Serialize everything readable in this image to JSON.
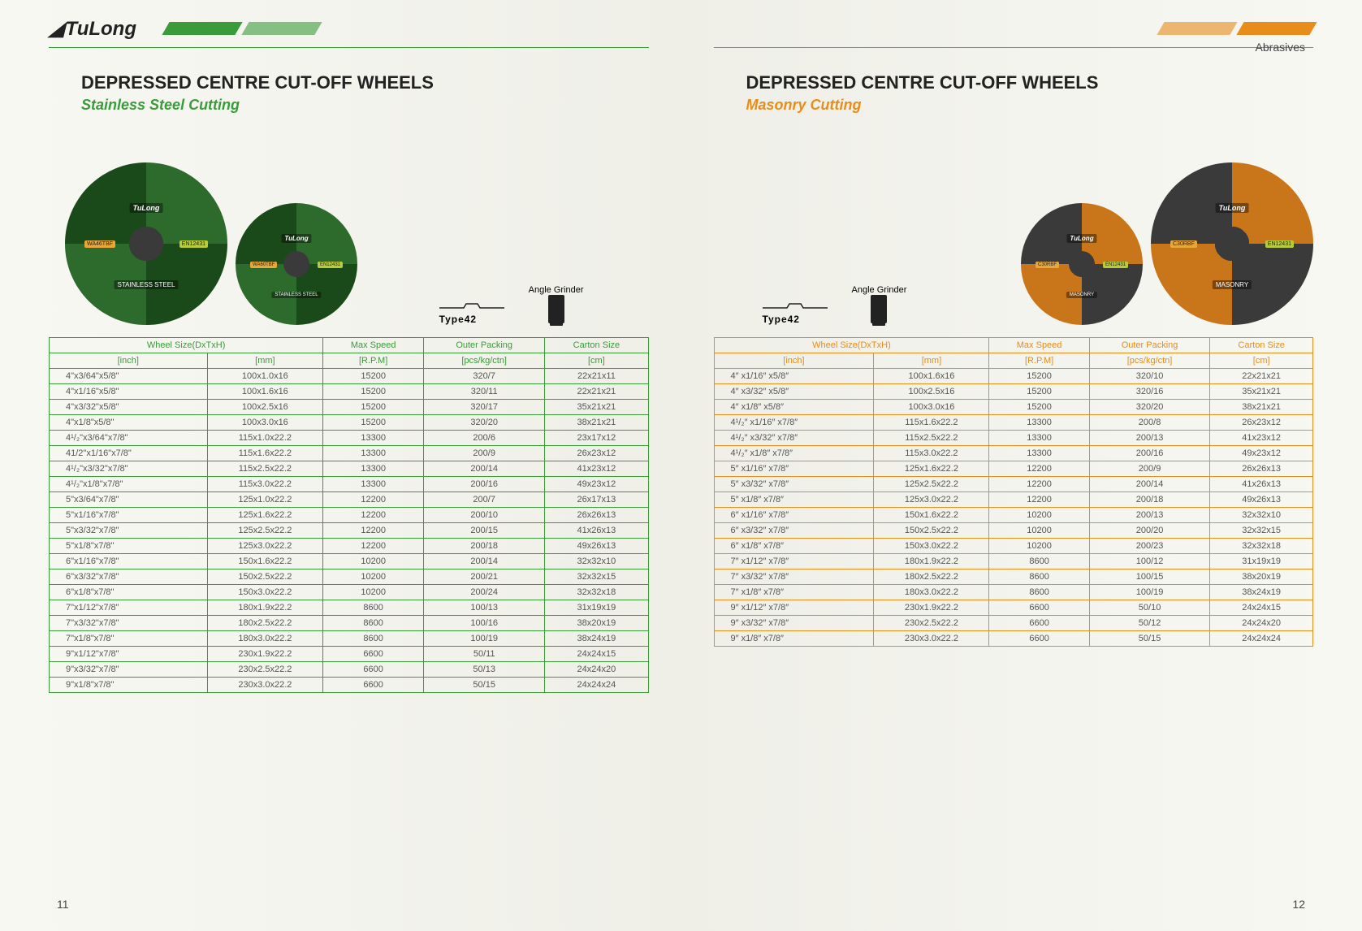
{
  "brand": "TuLong",
  "category_label": "Abrasives",
  "type_label": "Type42",
  "grinder_label": "Angle Grinder",
  "columns": {
    "wheel_size": "Wheel Size(DxTxH)",
    "inch": "[inch]",
    "mm": "[mm]",
    "max_speed": "Max Speed",
    "rpm": "[R.P.M]",
    "outer_packing": "Outer Packing",
    "pcs": "[pcs/kg/ctn]",
    "carton_size": "Carton Size",
    "cm": "[cm]"
  },
  "left": {
    "title": "DEPRESSED CENTRE CUT-OFF WHEELS",
    "subtitle": "Stainless Steel Cutting",
    "accent_color": "#3a9b3a",
    "disc_big": {
      "code": "WA46TBF",
      "en": "EN12431",
      "type": "STAINLESS STEEL"
    },
    "disc_small": {
      "code": "WA60TBF",
      "en": "EN12431",
      "type": "STAINLESS STEEL"
    },
    "page_num": "11",
    "rows": [
      [
        "4\"x3/64\"x5/8\"",
        "100x1.0x16",
        "15200",
        "320/7",
        "22x21x11"
      ],
      [
        "4\"x1/16\"x5/8\"",
        "100x1.6x16",
        "15200",
        "320/11",
        "22x21x21"
      ],
      [
        "4\"x3/32\"x5/8\"",
        "100x2.5x16",
        "15200",
        "320/17",
        "35x21x21"
      ],
      [
        "4\"x1/8\"x5/8\"",
        "100x3.0x16",
        "15200",
        "320/20",
        "38x21x21"
      ],
      [
        "4¹/₂\"x3/64\"x7/8\"",
        "115x1.0x22.2",
        "13300",
        "200/6",
        "23x17x12"
      ],
      [
        "41/2\"x1/16\"x7/8\"",
        "115x1.6x22.2",
        "13300",
        "200/9",
        "26x23x12"
      ],
      [
        "4¹/₂\"x3/32\"x7/8\"",
        "115x2.5x22.2",
        "13300",
        "200/14",
        "41x23x12"
      ],
      [
        "4¹/₂\"x1/8\"x7/8\"",
        "115x3.0x22.2",
        "13300",
        "200/16",
        "49x23x12"
      ],
      [
        "5\"x3/64\"x7/8\"",
        "125x1.0x22.2",
        "12200",
        "200/7",
        "26x17x13"
      ],
      [
        "5\"x1/16\"x7/8\"",
        "125x1.6x22.2",
        "12200",
        "200/10",
        "26x26x13"
      ],
      [
        "5\"x3/32\"x7/8\"",
        "125x2.5x22.2",
        "12200",
        "200/15",
        "41x26x13"
      ],
      [
        "5\"x1/8\"x7/8\"",
        "125x3.0x22.2",
        "12200",
        "200/18",
        "49x26x13"
      ],
      [
        "6\"x1/16\"x7/8\"",
        "150x1.6x22.2",
        "10200",
        "200/14",
        "32x32x10"
      ],
      [
        "6\"x3/32\"x7/8\"",
        "150x2.5x22.2",
        "10200",
        "200/21",
        "32x32x15"
      ],
      [
        "6\"x1/8\"x7/8\"",
        "150x3.0x22.2",
        "10200",
        "200/24",
        "32x32x18"
      ],
      [
        "7\"x1/12\"x7/8\"",
        "180x1.9x22.2",
        "8600",
        "100/13",
        "31x19x19"
      ],
      [
        "7\"x3/32\"x7/8\"",
        "180x2.5x22.2",
        "8600",
        "100/16",
        "38x20x19"
      ],
      [
        "7\"x1/8\"x7/8\"",
        "180x3.0x22.2",
        "8600",
        "100/19",
        "38x24x19"
      ],
      [
        "9\"x1/12\"x7/8\"",
        "230x1.9x22.2",
        "6600",
        "50/11",
        "24x24x15"
      ],
      [
        "9\"x3/32\"x7/8\"",
        "230x2.5x22.2",
        "6600",
        "50/13",
        "24x24x20"
      ],
      [
        "9\"x1/8\"x7/8\"",
        "230x3.0x22.2",
        "6600",
        "50/15",
        "24x24x24"
      ]
    ]
  },
  "right": {
    "title": "DEPRESSED CENTRE CUT-OFF WHEELS",
    "subtitle": "Masonry Cutting",
    "accent_color": "#e88c1a",
    "disc_big": {
      "code": "C30RBF",
      "en": "EN12431",
      "type": "MASONRY"
    },
    "disc_small": {
      "code": "C30RBF",
      "en": "EN12431",
      "type": "MASONRY"
    },
    "page_num": "12",
    "rows": [
      [
        "4″ x1/16″ x5/8″",
        "100x1.6x16",
        "15200",
        "320/10",
        "22x21x21"
      ],
      [
        "4″ x3/32″ x5/8″",
        "100x2.5x16",
        "15200",
        "320/16",
        "35x21x21"
      ],
      [
        "4″ x1/8″ x5/8″",
        "100x3.0x16",
        "15200",
        "320/20",
        "38x21x21"
      ],
      [
        "4¹/₂″ x1/16″ x7/8″",
        "115x1.6x22.2",
        "13300",
        "200/8",
        "26x23x12"
      ],
      [
        "4¹/₂″ x3/32″ x7/8″",
        "115x2.5x22.2",
        "13300",
        "200/13",
        "41x23x12"
      ],
      [
        "4¹/₂″ x1/8″ x7/8″",
        "115x3.0x22.2",
        "13300",
        "200/16",
        "49x23x12"
      ],
      [
        "5″ x1/16″ x7/8″",
        "125x1.6x22.2",
        "12200",
        "200/9",
        "26x26x13"
      ],
      [
        "5″ x3/32″ x7/8″",
        "125x2.5x22.2",
        "12200",
        "200/14",
        "41x26x13"
      ],
      [
        "5″ x1/8″ x7/8″",
        "125x3.0x22.2",
        "12200",
        "200/18",
        "49x26x13"
      ],
      [
        "6″ x1/16″ x7/8″",
        "150x1.6x22.2",
        "10200",
        "200/13",
        "32x32x10"
      ],
      [
        "6″ x3/32″ x7/8″",
        "150x2.5x22.2",
        "10200",
        "200/20",
        "32x32x15"
      ],
      [
        "6″ x1/8″ x7/8″",
        "150x3.0x22.2",
        "10200",
        "200/23",
        "32x32x18"
      ],
      [
        "7″ x1/12″ x7/8″",
        "180x1.9x22.2",
        "8600",
        "100/12",
        "31x19x19"
      ],
      [
        "7″ x3/32″ x7/8″",
        "180x2.5x22.2",
        "8600",
        "100/15",
        "38x20x19"
      ],
      [
        "7″ x1/8″ x7/8″",
        "180x3.0x22.2",
        "8600",
        "100/19",
        "38x24x19"
      ],
      [
        "9″ x1/12″ x7/8″",
        "230x1.9x22.2",
        "6600",
        "50/10",
        "24x24x15"
      ],
      [
        "9″ x3/32″ x7/8″",
        "230x2.5x22.2",
        "6600",
        "50/12",
        "24x24x20"
      ],
      [
        "9″ x1/8″ x7/8″",
        "230x3.0x22.2",
        "6600",
        "50/15",
        "24x24x24"
      ]
    ]
  }
}
